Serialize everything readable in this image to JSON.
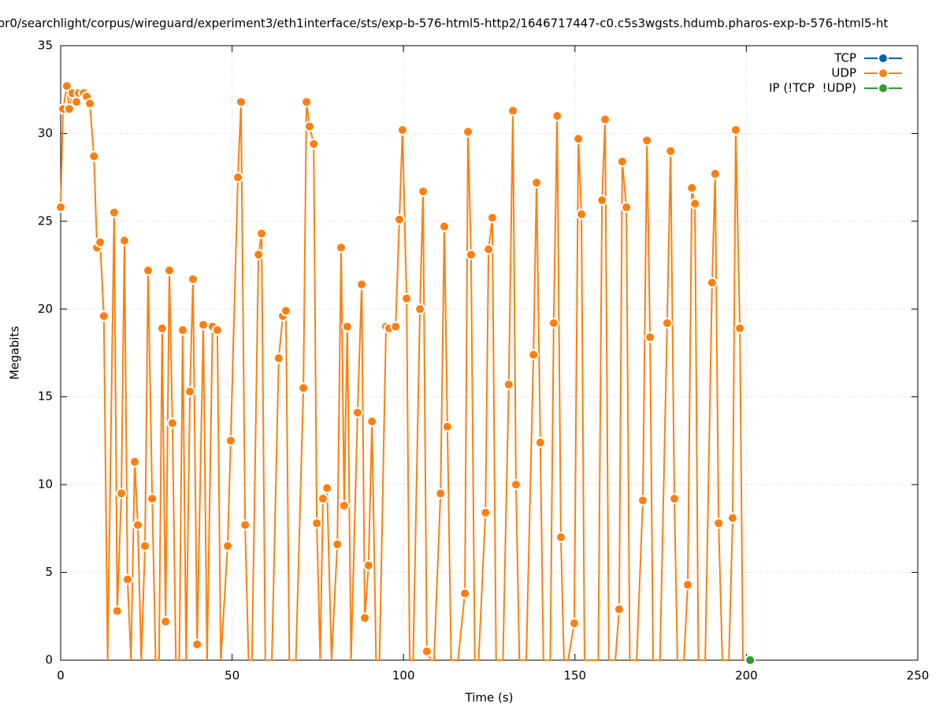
{
  "chart_data": {
    "type": "line",
    "title": "or0/searchlight/corpus/wireguard/experiment3/eth1interface/sts/exp-b-576-html5-http2/1646717447-c0.c5s3wgsts.hdumb.pharos-exp-b-576-html5-ht",
    "x_label": "Time (s)",
    "y_label": "Megabits",
    "xlim": [
      0,
      250
    ],
    "xticks": [
      0,
      50,
      100,
      150,
      200,
      250
    ],
    "ylim": [
      0,
      35
    ],
    "yticks": [
      0,
      5,
      10,
      15,
      20,
      25,
      30,
      35
    ],
    "grid": true,
    "legend": "top-right",
    "series": [
      {
        "name": "TCP",
        "color": "#0060ad",
        "x": [],
        "values": []
      },
      {
        "name": "UDP",
        "color": "#ff7f0e",
        "x": [
          0,
          0.7,
          1.8,
          2.5,
          3.4,
          4.6,
          5.3,
          6.7,
          7.6,
          8.5,
          9.7,
          10.6,
          11.5,
          12.6,
          13.7,
          15.6,
          16.5,
          17.7,
          18.6,
          19.5,
          20.5,
          21.6,
          22.5,
          23.5,
          24.6,
          25.5,
          26.7,
          27.7,
          28.7,
          29.6,
          30.6,
          31.7,
          32.6,
          33.6,
          34.6,
          35.6,
          36.6,
          37.7,
          38.6,
          39.8,
          41.6,
          42.7,
          44.3,
          45.7,
          46.7,
          48.7,
          49.6,
          51.7,
          52.6,
          53.8,
          54.8,
          55.8,
          57.7,
          58.6,
          59.7,
          61.6,
          63.6,
          64.8,
          65.7,
          66.7,
          68.6,
          70.8,
          71.7,
          72.6,
          73.8,
          74.7,
          75.7,
          76.5,
          77.7,
          79,
          80.7,
          81.8,
          82.7,
          83.6,
          84.7,
          86.6,
          87.8,
          88.7,
          89.8,
          90.8,
          92,
          93,
          94.9,
          95.8,
          97.7,
          98.8,
          99.7,
          100.9,
          101.8,
          102.8,
          104.8,
          105.7,
          106.8,
          108,
          108.9,
          110.8,
          111.9,
          112.8,
          113.9,
          115.9,
          117.9,
          118.8,
          119.7,
          120.8,
          121.9,
          123.9,
          124.8,
          125.9,
          127,
          129,
          130.7,
          131.9,
          132.8,
          133.8,
          135.8,
          137.9,
          138.8,
          139.9,
          140.8,
          142.8,
          143.8,
          144.8,
          145.9,
          146.8,
          148,
          149.8,
          151,
          151.9,
          152.8,
          154.8,
          156.8,
          157.9,
          158.8,
          159.9,
          161.8,
          162.9,
          163.8,
          165,
          166,
          168,
          169.8,
          171,
          171.9,
          172.8,
          174.8,
          176.9,
          177.9,
          179,
          179.9,
          181.8,
          182.9,
          184.1,
          185,
          186,
          188,
          190,
          190.9,
          191.9,
          193,
          194.9,
          196,
          196.9,
          198.1,
          199
        ],
        "values": [
          25.8,
          31.4,
          32.7,
          31.4,
          32.3,
          31.8,
          32.3,
          32.3,
          32.1,
          31.7,
          28.7,
          23.5,
          23.8,
          19.6,
          0,
          25.5,
          2.8,
          9.5,
          23.9,
          4.6,
          0,
          11.3,
          7.7,
          0,
          6.5,
          22.2,
          9.2,
          0,
          0,
          18.9,
          2.2,
          22.2,
          13.5,
          0,
          0,
          18.8,
          0,
          15.3,
          21.7,
          0.9,
          19.1,
          0,
          19.0,
          18.8,
          0,
          6.5,
          12.5,
          27.5,
          31.8,
          7.7,
          0,
          0,
          23.1,
          24.3,
          0,
          0,
          17.2,
          19.6,
          19.9,
          0,
          0,
          15.5,
          31.8,
          30.4,
          29.4,
          7.8,
          0,
          9.2,
          9.8,
          0,
          6.6,
          23.5,
          8.8,
          19.0,
          0,
          14.1,
          21.4,
          2.4,
          5.4,
          13.6,
          0,
          0,
          19.0,
          18.9,
          19.0,
          25.1,
          30.2,
          20.6,
          0,
          0,
          20.0,
          26.7,
          0.5,
          0,
          0,
          9.5,
          24.7,
          13.3,
          0,
          0,
          3.8,
          30.1,
          23.1,
          0,
          0,
          8.4,
          23.4,
          25.2,
          0,
          0,
          15.7,
          31.3,
          10.0,
          0,
          0,
          17.4,
          27.2,
          12.4,
          0,
          0,
          19.2,
          31.0,
          7.0,
          0,
          0,
          2.1,
          29.7,
          25.4,
          0,
          0,
          0,
          26.2,
          30.8,
          0,
          0,
          2.9,
          28.4,
          25.8,
          0,
          0,
          9.1,
          29.6,
          18.4,
          0,
          0,
          19.2,
          29.0,
          9.2,
          0,
          0,
          4.3,
          26.9,
          26.0,
          0,
          0,
          21.5,
          27.7,
          7.8,
          0,
          0,
          8.1,
          30.2,
          18.9,
          0
        ]
      },
      {
        "name": "IP (!TCP  !UDP)",
        "color": "#2ca02c",
        "x": [
          201.1
        ],
        "values": [
          0
        ]
      }
    ]
  }
}
